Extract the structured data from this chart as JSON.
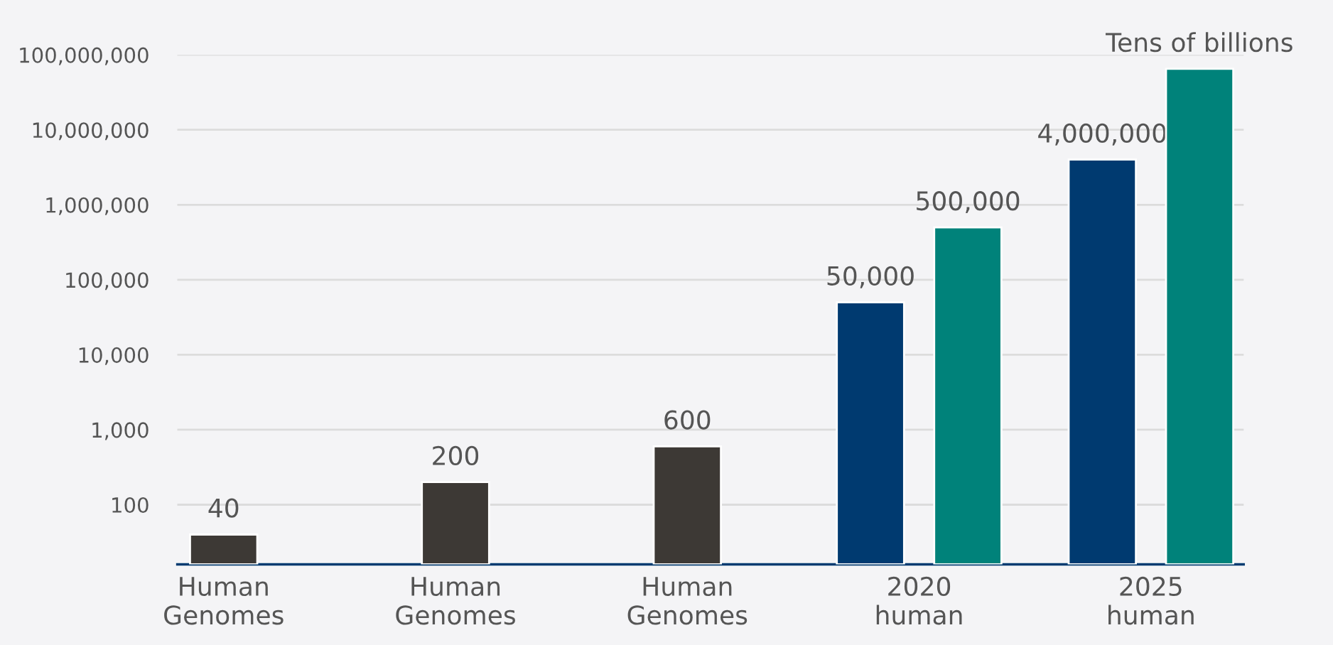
{
  "chart_data": {
    "type": "bar",
    "categories": [
      "Human\nGenomes",
      "Human\nGenomes",
      "Human\nGenomes",
      "2020\nhuman",
      "2025\nhuman"
    ],
    "series": [
      {
        "colors": [
          "#3d3935",
          "#3d3935",
          "#3d3935",
          "#003a70",
          "#003a70"
        ],
        "values": [
          40,
          200,
          600,
          50000,
          4000000
        ],
        "value_labels": [
          "40",
          "200",
          "600",
          "50,000",
          "4,000,000"
        ]
      },
      {
        "color": "#00827a",
        "values": [
          null,
          null,
          null,
          500000,
          65000000
        ],
        "value_labels": [
          null,
          null,
          null,
          "500,000",
          "Tens of billions"
        ]
      }
    ],
    "log": "y",
    "ylim": [
      16,
      100000000
    ],
    "yticks": [
      {
        "value": 100,
        "label": "100"
      },
      {
        "value": 1000,
        "label": "1,000"
      },
      {
        "value": 10000,
        "label": "10,000"
      },
      {
        "value": 100000,
        "label": "100,000"
      },
      {
        "value": 1000000,
        "label": "1,000,000"
      },
      {
        "value": 10000000,
        "label": "10,000,000"
      },
      {
        "value": 100000000,
        "label": "100,000,000"
      }
    ],
    "grid": "y",
    "stacked": false
  }
}
